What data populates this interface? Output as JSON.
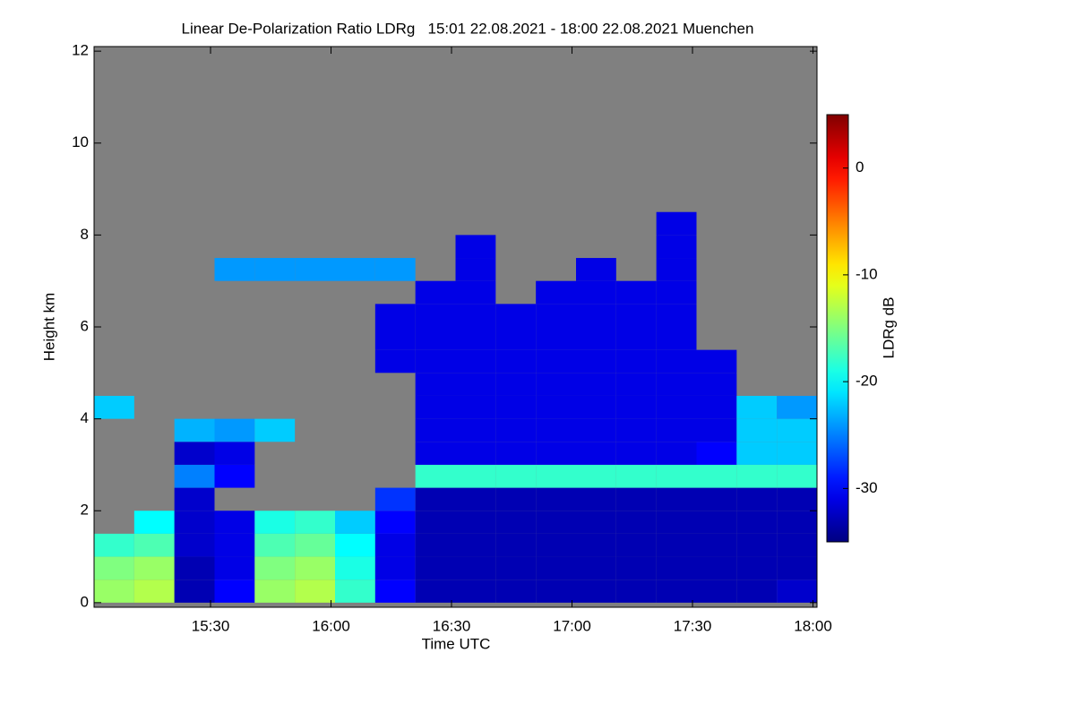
{
  "chart_data": {
    "type": "heatmap",
    "title": "Linear De-Polarization Ratio LDRg   15:01 22.08.2021 - 18:00 22.08.2021 Muenchen",
    "xlabel": "Time UTC",
    "ylabel": "Height km",
    "colorbar_label": "LDRg dB",
    "colormap": "jet",
    "x": [
      906,
      916,
      926,
      936,
      946,
      956,
      966,
      976,
      986,
      996,
      1006,
      1016,
      1026,
      1036,
      1046,
      1056,
      1066,
      1076
    ],
    "y": [
      0.25,
      0.75,
      1.25,
      1.75,
      2.25,
      2.75,
      3.25,
      3.75,
      4.25,
      4.75,
      5.25,
      5.75,
      6.25,
      6.75,
      7.25,
      7.75,
      8.25
    ],
    "z": [
      [
        -14,
        -13,
        -33,
        -30,
        -14,
        -13,
        -18,
        -30,
        -33,
        -33,
        -33,
        -33,
        -33,
        -33,
        -33,
        -33,
        -33,
        -32
      ],
      [
        -15,
        -14,
        -33,
        -31,
        -15,
        -14,
        -19,
        -31,
        -33,
        -33,
        -33,
        -33,
        -33,
        -33,
        -33,
        -33,
        -33,
        -33
      ],
      [
        -18,
        -17,
        -32,
        -31,
        -17,
        -16,
        -20,
        -31,
        -33,
        -33,
        -33,
        -33,
        -33,
        -33,
        -33,
        -33,
        -33,
        -33
      ],
      [
        null,
        -20,
        -32,
        -31,
        -19,
        -18,
        -22,
        -30,
        -33,
        -33,
        -33,
        -33,
        -33,
        -33,
        -33,
        -33,
        -33,
        -33
      ],
      [
        null,
        null,
        -32,
        null,
        null,
        null,
        null,
        -28,
        -33,
        -33,
        -33,
        -33,
        -33,
        -33,
        -33,
        -33,
        -33,
        -33
      ],
      [
        null,
        null,
        -25,
        -30,
        null,
        null,
        null,
        null,
        -18,
        -18,
        -18,
        -18,
        -18,
        -18,
        -18,
        -18,
        -18,
        -18
      ],
      [
        null,
        null,
        -32,
        -31,
        null,
        null,
        null,
        null,
        -31,
        -31,
        -31,
        -31,
        -31,
        -31,
        -31,
        -30,
        -22,
        -22
      ],
      [
        null,
        null,
        -23,
        -24,
        -22,
        null,
        null,
        null,
        -31,
        -31,
        -31,
        -31,
        -31,
        -31,
        -31,
        -31,
        -22,
        -22
      ],
      [
        -22,
        null,
        null,
        null,
        null,
        null,
        null,
        null,
        -31,
        -31,
        -31,
        -31,
        -31,
        -31,
        -31,
        -31,
        -22,
        -24
      ],
      [
        null,
        null,
        null,
        null,
        null,
        null,
        null,
        null,
        -31,
        -31,
        -31,
        -31,
        -31,
        -31,
        -31,
        -31,
        null,
        null
      ],
      [
        null,
        null,
        null,
        null,
        null,
        null,
        null,
        -31,
        -31,
        -31,
        -31,
        -31,
        -31,
        -31,
        -31,
        -31,
        null,
        null
      ],
      [
        null,
        null,
        null,
        null,
        null,
        null,
        null,
        -31,
        -31,
        -31,
        -31,
        -31,
        -31,
        -31,
        -31,
        null,
        null,
        null
      ],
      [
        null,
        null,
        null,
        null,
        null,
        null,
        null,
        -31,
        -31,
        -31,
        -31,
        -31,
        -31,
        -31,
        -31,
        null,
        null,
        null
      ],
      [
        null,
        null,
        null,
        null,
        null,
        null,
        null,
        null,
        -31,
        -31,
        null,
        -31,
        -31,
        -31,
        -31,
        null,
        null,
        null
      ],
      [
        null,
        null,
        null,
        -24,
        -24,
        -24,
        -24,
        -24,
        null,
        -31,
        null,
        null,
        -31,
        null,
        -31,
        null,
        null,
        null
      ],
      [
        null,
        null,
        null,
        null,
        null,
        null,
        null,
        null,
        null,
        -31,
        null,
        null,
        null,
        null,
        -31,
        null,
        null,
        null
      ],
      [
        null,
        null,
        null,
        null,
        null,
        null,
        null,
        null,
        null,
        null,
        null,
        null,
        null,
        null,
        -31,
        null,
        null,
        null
      ]
    ],
    "xlim": [
      901,
      1081
    ],
    "ylim": [
      -0.1,
      12.1
    ],
    "zlim": [
      -35,
      5
    ],
    "xticks": [
      {
        "value": 930,
        "label": "15:30"
      },
      {
        "value": 960,
        "label": "16:00"
      },
      {
        "value": 990,
        "label": "16:30"
      },
      {
        "value": 1020,
        "label": "17:00"
      },
      {
        "value": 1050,
        "label": "17:30"
      },
      {
        "value": 1080,
        "label": "18:00"
      }
    ],
    "yticks": [
      0,
      2,
      4,
      6,
      8,
      10,
      12
    ],
    "zticks": [
      0,
      -10,
      -20,
      -30
    ]
  }
}
